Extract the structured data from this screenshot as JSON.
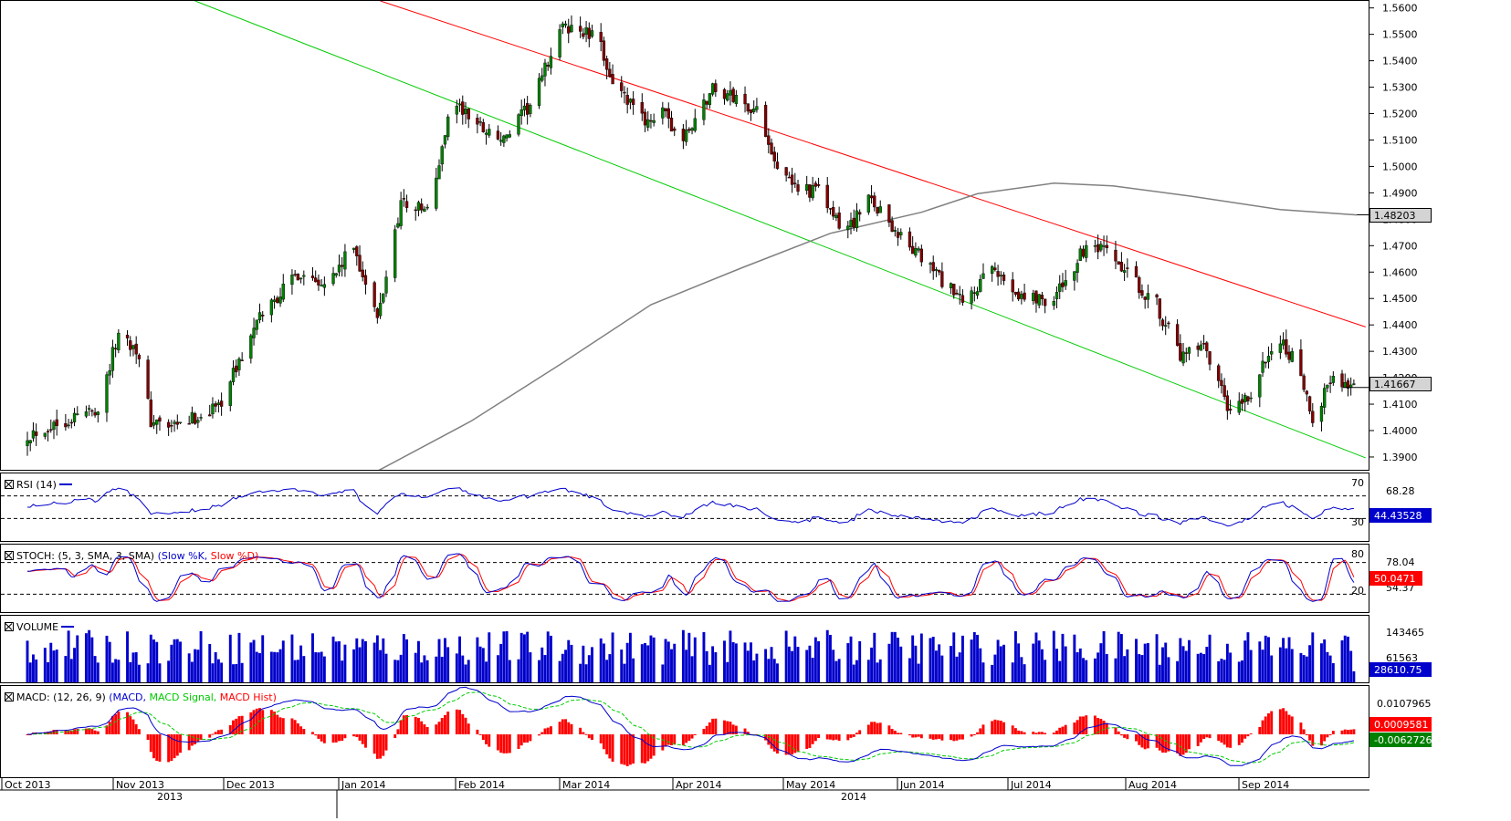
{
  "chart_data": {
    "type": "candlestick",
    "title": "",
    "price_axis": {
      "ticks": [
        "1.5600",
        "1.5500",
        "1.5400",
        "1.5300",
        "1.5200",
        "1.5100",
        "1.5000",
        "1.4900",
        "1.4800",
        "1.4700",
        "1.4600",
        "1.4500",
        "1.4400",
        "1.4300",
        "1.4200",
        "1.4100",
        "1.4000",
        "1.3900"
      ],
      "ylim": [
        1.3855,
        1.563
      ],
      "last_price_label": "1.41667",
      "ma_label": "1.48203",
      "last_price": 1.41667,
      "ma_value": 1.48203
    },
    "x_axis": {
      "months": [
        "Oct 2013",
        "Nov 2013",
        "Dec 2013",
        "Jan 2014",
        "Feb 2014",
        "Mar 2014",
        "Apr 2014",
        "May 2014",
        "Jun 2014",
        "Jul 2014",
        "Aug 2014",
        "Sep 2014"
      ],
      "years": [
        "2013",
        "2014"
      ]
    },
    "candles_anchor_closes": [
      {
        "date": "2013-10-01",
        "close": 1.399
      },
      {
        "date": "2013-10-25",
        "close": 1.409
      },
      {
        "date": "2013-11-01",
        "close": 1.437
      },
      {
        "date": "2013-11-07",
        "close": 1.432
      },
      {
        "date": "2013-11-12",
        "close": 1.404
      },
      {
        "date": "2013-11-20",
        "close": 1.401
      },
      {
        "date": "2013-12-05",
        "close": 1.41
      },
      {
        "date": "2013-12-20",
        "close": 1.445
      },
      {
        "date": "2014-01-01",
        "close": 1.46
      },
      {
        "date": "2014-01-12",
        "close": 1.457
      },
      {
        "date": "2014-01-20",
        "close": 1.47
      },
      {
        "date": "2014-01-28",
        "close": 1.442
      },
      {
        "date": "2014-02-05",
        "close": 1.487
      },
      {
        "date": "2014-02-15",
        "close": 1.483
      },
      {
        "date": "2014-02-22",
        "close": 1.526
      },
      {
        "date": "2014-03-01",
        "close": 1.518
      },
      {
        "date": "2014-03-12",
        "close": 1.51
      },
      {
        "date": "2014-03-22",
        "close": 1.525
      },
      {
        "date": "2014-03-31",
        "close": 1.552
      },
      {
        "date": "2014-04-05",
        "close": 1.553
      },
      {
        "date": "2014-04-13",
        "close": 1.548
      },
      {
        "date": "2014-04-19",
        "close": 1.53
      },
      {
        "date": "2014-04-28",
        "close": 1.518
      },
      {
        "date": "2014-05-05",
        "close": 1.52
      },
      {
        "date": "2014-05-12",
        "close": 1.51
      },
      {
        "date": "2014-05-22",
        "close": 1.53
      },
      {
        "date": "2014-06-01",
        "close": 1.525
      },
      {
        "date": "2014-06-07",
        "close": 1.52
      },
      {
        "date": "2014-06-15",
        "close": 1.495
      },
      {
        "date": "2014-06-28",
        "close": 1.49
      },
      {
        "date": "2014-07-05",
        "close": 1.475
      },
      {
        "date": "2014-07-15",
        "close": 1.488
      },
      {
        "date": "2014-07-26",
        "close": 1.472
      },
      {
        "date": "2014-08-05",
        "close": 1.461
      },
      {
        "date": "2014-08-15",
        "close": 1.448
      },
      {
        "date": "2014-08-25",
        "close": 1.461
      },
      {
        "date": "2014-09-05",
        "close": 1.451
      },
      {
        "date": "2014-09-15",
        "close": 1.45
      },
      {
        "date": "2014-09-25",
        "close": 1.468
      },
      {
        "date": "2014-10-02",
        "close": 1.468
      },
      {
        "date": "2014-10-12",
        "close": 1.457
      },
      {
        "date": "2014-10-20",
        "close": 1.448
      },
      {
        "date": "2014-10-28",
        "close": 1.428
      },
      {
        "date": "2014-11-05",
        "close": 1.431
      },
      {
        "date": "2014-11-14",
        "close": 1.406
      },
      {
        "date": "2014-11-22",
        "close": 1.415
      },
      {
        "date": "2014-11-29",
        "close": 1.436
      },
      {
        "date": "2014-12-05",
        "close": 1.428
      },
      {
        "date": "2014-12-12",
        "close": 1.405
      },
      {
        "date": "2014-12-18",
        "close": 1.42
      },
      {
        "date": "2014-12-27",
        "close": 1.417
      }
    ],
    "moving_average_anchor": [
      {
        "date": "2014-01-28",
        "value": 1.385
      },
      {
        "date": "2014-03-01",
        "value": 1.404
      },
      {
        "date": "2014-04-01",
        "value": 1.426
      },
      {
        "date": "2014-05-01",
        "value": 1.448
      },
      {
        "date": "2014-06-01",
        "value": 1.462
      },
      {
        "date": "2014-07-01",
        "value": 1.475
      },
      {
        "date": "2014-08-01",
        "value": 1.483
      },
      {
        "date": "2014-08-20",
        "value": 1.49
      },
      {
        "date": "2014-09-15",
        "value": 1.494
      },
      {
        "date": "2014-10-05",
        "value": 1.493
      },
      {
        "date": "2014-11-01",
        "value": 1.489
      },
      {
        "date": "2014-12-01",
        "value": 1.484
      },
      {
        "date": "2014-12-27",
        "value": 1.482
      }
    ],
    "trendlines": [
      {
        "color": "#ff0000",
        "from": {
          "date": "2014-01-29",
          "value": 1.563
        },
        "to": {
          "date": "2014-12-30",
          "value": 1.4396
        }
      },
      {
        "color": "#00cc00",
        "from": {
          "date": "2013-11-27",
          "value": 1.563
        },
        "to": {
          "date": "2014-12-30",
          "value": 1.39
        }
      }
    ],
    "colors": {
      "up": "#008000",
      "down": "#800000",
      "wick": "#000000",
      "ma": "#808080",
      "red_line": "#ff0000",
      "green_line": "#00cc00"
    }
  },
  "indicators": {
    "rsi": {
      "title": "RSI (14)",
      "levels": [
        "70",
        "30"
      ],
      "last_label": "44.43528",
      "extra_label": "68.28",
      "last": 44.43528
    },
    "stoch": {
      "title_prefix": "STOCH: (5, 3, SMA, 3, SMA) ",
      "slow_k": "(Slow %K,",
      "slow_d": "Slow %D)",
      "levels": [
        "80",
        "20"
      ],
      "k_label": "50.0471",
      "d_label": "54.37",
      "extra_label": "78.04",
      "k_last": 50.0471,
      "d_last": 54.37
    },
    "volume": {
      "title": "VOLUME",
      "ticks": [
        "143465",
        "61563"
      ],
      "last_label": "28610.75",
      "last": 28610.75,
      "vmax": 165000
    },
    "macd": {
      "title": "MACD: (12, 26, 9) ",
      "macd_name": "(MACD,",
      "signal_name": "MACD Signal,",
      "hist_name": "MACD Hist)",
      "tick": "0.0107965",
      "hist_label": "0.0009581",
      "macd_label": "-0.0062726",
      "hist_last": 0.0009581,
      "macd_last": -0.0062726
    }
  },
  "colors": {
    "blue": "#0000cc",
    "red": "#ff0000",
    "green": "#00cc00",
    "axis_bg": "#ffffff"
  }
}
